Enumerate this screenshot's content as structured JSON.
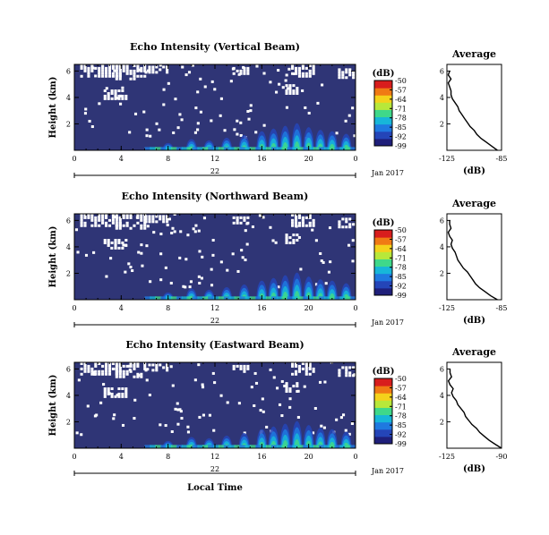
{
  "figure": {
    "xlabel_bottom": "Local Time",
    "date_label": "Jan 2017",
    "day_label": "22",
    "cbar_unit": "(dB)",
    "profile_title": "Average",
    "profile_xlabel": "(dB)"
  },
  "colors": {
    "background_field": "#2f3576",
    "gap": "#ffffff",
    "colormap": [
      "#1f1f7a",
      "#2445b8",
      "#1f79e0",
      "#17b6d9",
      "#3fd88a",
      "#b8e83a",
      "#f4d21b",
      "#f07a14",
      "#d81d1d"
    ]
  },
  "chart_data": [
    {
      "type": "heatmap",
      "title": "Echo Intensity (Vertical Beam)",
      "ylabel": "Height (km)",
      "x_ticks": [
        "0",
        "4",
        "8",
        "12",
        "16",
        "20",
        "0"
      ],
      "y_ticks": [
        "2",
        "4",
        "6"
      ],
      "xlim": [
        0,
        24
      ],
      "ylim": [
        0,
        6.5
      ],
      "colorbar": {
        "ticks": [
          "-50",
          "-57",
          "-64",
          "-71",
          "-78",
          "-85",
          "-92",
          "-99"
        ],
        "range": [
          -99,
          -50
        ]
      },
      "profile": {
        "x_ticks": [
          "-125",
          "-85"
        ],
        "xlim": [
          -125,
          -85
        ],
        "y_ticks": [
          "2",
          "4",
          "6"
        ],
        "ylim": [
          0,
          6.5
        ],
        "height": [
          0.0,
          0.3,
          0.6,
          0.9,
          1.2,
          1.5,
          1.8,
          2.1,
          2.4,
          2.7,
          3.0,
          3.3,
          3.6,
          3.9,
          4.2,
          4.5,
          4.8,
          5.1,
          5.4,
          5.7,
          6.0
        ],
        "db": [
          -88,
          -92,
          -96,
          -100,
          -103,
          -105,
          -108,
          -110,
          -112,
          -114,
          -116,
          -117,
          -119,
          -121,
          -122,
          -122,
          -123,
          -124,
          -122,
          -124,
          -123
        ]
      }
    },
    {
      "type": "heatmap",
      "title": "Echo Intensity (Northward Beam)",
      "ylabel": "Height (km)",
      "x_ticks": [
        "0",
        "4",
        "8",
        "12",
        "16",
        "20",
        "0"
      ],
      "y_ticks": [
        "2",
        "4",
        "6"
      ],
      "xlim": [
        0,
        24
      ],
      "ylim": [
        0,
        6.5
      ],
      "colorbar": {
        "ticks": [
          "-50",
          "-57",
          "-64",
          "-71",
          "-78",
          "-85",
          "-92",
          "-99"
        ],
        "range": [
          -99,
          -50
        ]
      },
      "profile": {
        "x_ticks": [
          "-125",
          "-85"
        ],
        "xlim": [
          -125,
          -85
        ],
        "y_ticks": [
          "2",
          "4",
          "6"
        ],
        "ylim": [
          0,
          6.5
        ],
        "height": [
          0.0,
          0.3,
          0.6,
          0.9,
          1.2,
          1.5,
          1.8,
          2.1,
          2.4,
          2.7,
          3.0,
          3.3,
          3.6,
          3.9,
          4.2,
          4.5,
          4.8,
          5.1,
          5.4,
          5.7,
          6.0
        ],
        "db": [
          -88,
          -93,
          -97,
          -101,
          -104,
          -106,
          -108,
          -110,
          -113,
          -115,
          -117,
          -118,
          -119,
          -121,
          -122,
          -121,
          -123,
          -124,
          -122,
          -123,
          -123
        ]
      }
    },
    {
      "type": "heatmap",
      "title": "Echo Intensity (Eastward Beam)",
      "ylabel": "Height (km)",
      "x_ticks": [
        "0",
        "4",
        "8",
        "12",
        "16",
        "20",
        "0"
      ],
      "y_ticks": [
        "2",
        "4",
        "6"
      ],
      "xlim": [
        0,
        24
      ],
      "ylim": [
        0,
        6.5
      ],
      "colorbar": {
        "ticks": [
          "-50",
          "-57",
          "-64",
          "-71",
          "-78",
          "-85",
          "-92",
          "-99"
        ],
        "range": [
          -99,
          -50
        ]
      },
      "profile": {
        "x_ticks": [
          "-125",
          "-90"
        ],
        "xlim": [
          -125,
          -90
        ],
        "y_ticks": [
          "2",
          "4",
          "6"
        ],
        "ylim": [
          0,
          6.5
        ],
        "height": [
          0.0,
          0.3,
          0.6,
          0.9,
          1.2,
          1.5,
          1.8,
          2.1,
          2.4,
          2.7,
          3.0,
          3.3,
          3.6,
          3.9,
          4.2,
          4.5,
          4.8,
          5.1,
          5.4,
          5.7,
          6.0
        ],
        "db": [
          -90,
          -94,
          -98,
          -101,
          -104,
          -106,
          -109,
          -111,
          -113,
          -114,
          -116,
          -118,
          -119,
          -121,
          -122,
          -121,
          -123,
          -124,
          -122,
          -123,
          -123
        ]
      }
    }
  ]
}
